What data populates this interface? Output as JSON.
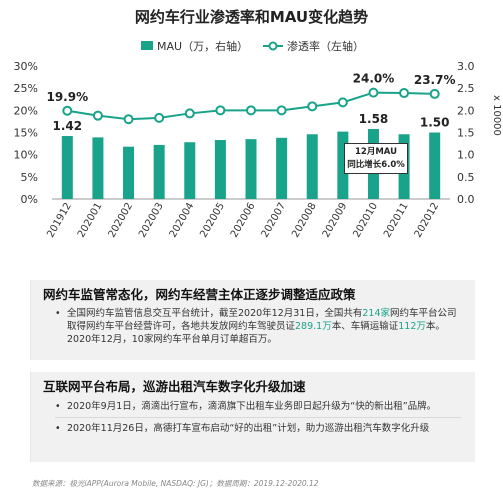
{
  "title": "网约车行业渗透率和MAU变化趋势",
  "legend": {
    "mau": "MAU（万，右轴）",
    "rate": "渗透率（左轴）"
  },
  "y_right_unit": "x 10000",
  "callout": {
    "line1": "12月MAU",
    "line2": "同比增长6.0%"
  },
  "colors": {
    "bar": "#18a38a",
    "line": "#18a38a",
    "highlight": "#18a38a"
  },
  "chart_data": {
    "type": "bar",
    "categories": [
      "201912",
      "202001",
      "202002",
      "202003",
      "202004",
      "202005",
      "202006",
      "202007",
      "202008",
      "202009",
      "202010",
      "202011",
      "202012"
    ],
    "series": [
      {
        "name": "MAU（万，右轴）",
        "type": "bar",
        "axis": "right",
        "values": [
          1.42,
          1.39,
          1.18,
          1.22,
          1.28,
          1.33,
          1.35,
          1.38,
          1.46,
          1.52,
          1.58,
          1.46,
          1.5
        ]
      },
      {
        "name": "渗透率（左轴）",
        "type": "line",
        "axis": "left",
        "values": [
          19.9,
          18.8,
          18.0,
          18.3,
          19.3,
          20.0,
          20.0,
          20.0,
          20.9,
          21.8,
          24.0,
          23.9,
          23.7
        ]
      }
    ],
    "y_left": {
      "ticks": [
        "0%",
        "5%",
        "10%",
        "15%",
        "20%",
        "25%",
        "30%"
      ],
      "range": [
        0,
        30
      ]
    },
    "y_right": {
      "ticks": [
        "0.0",
        "0.5",
        "1.0",
        "1.5",
        "2.0",
        "2.5",
        "3.0"
      ],
      "range": [
        0,
        3.0
      ]
    },
    "bar_labels": {
      "0": "1.42",
      "10": "1.58",
      "12": "1.50"
    },
    "line_labels": {
      "0": "19.9%",
      "10": "24.0%",
      "12": "23.7%"
    }
  },
  "panel1": {
    "heading": "网约车监管常态化，网约车经营主体正逐步调整适应政策",
    "p1_a": "全国网约车监管信息交互平台统计，截至2020年12月31日，全国共有",
    "p1_b": "214家",
    "p1_c": "网约车平台公司取得网约车平台经营许可，各地共发放网约车驾驶员证",
    "p1_d": "289.1万",
    "p1_e": "本、车辆运输证",
    "p1_f": "112万",
    "p1_g": "本。2020年12月，10家网约车平台单月订单超百万。"
  },
  "panel2": {
    "heading": "互联网平台布局，巡游出租汽车数字化升级加速",
    "p1": "2020年9月1日，滴滴出行宣布，滴滴旗下出租车业务即日起升级为“快的新出租”品牌。",
    "p2": "2020年11月26日，高德打车宣布启动“好的出租”计划，助力巡游出租汽车数字化升级"
  },
  "source": "数据来源：极光iAPP(Aurora Mobile, NASDAQ: JG)；数据周期：2019.12-2020.12"
}
